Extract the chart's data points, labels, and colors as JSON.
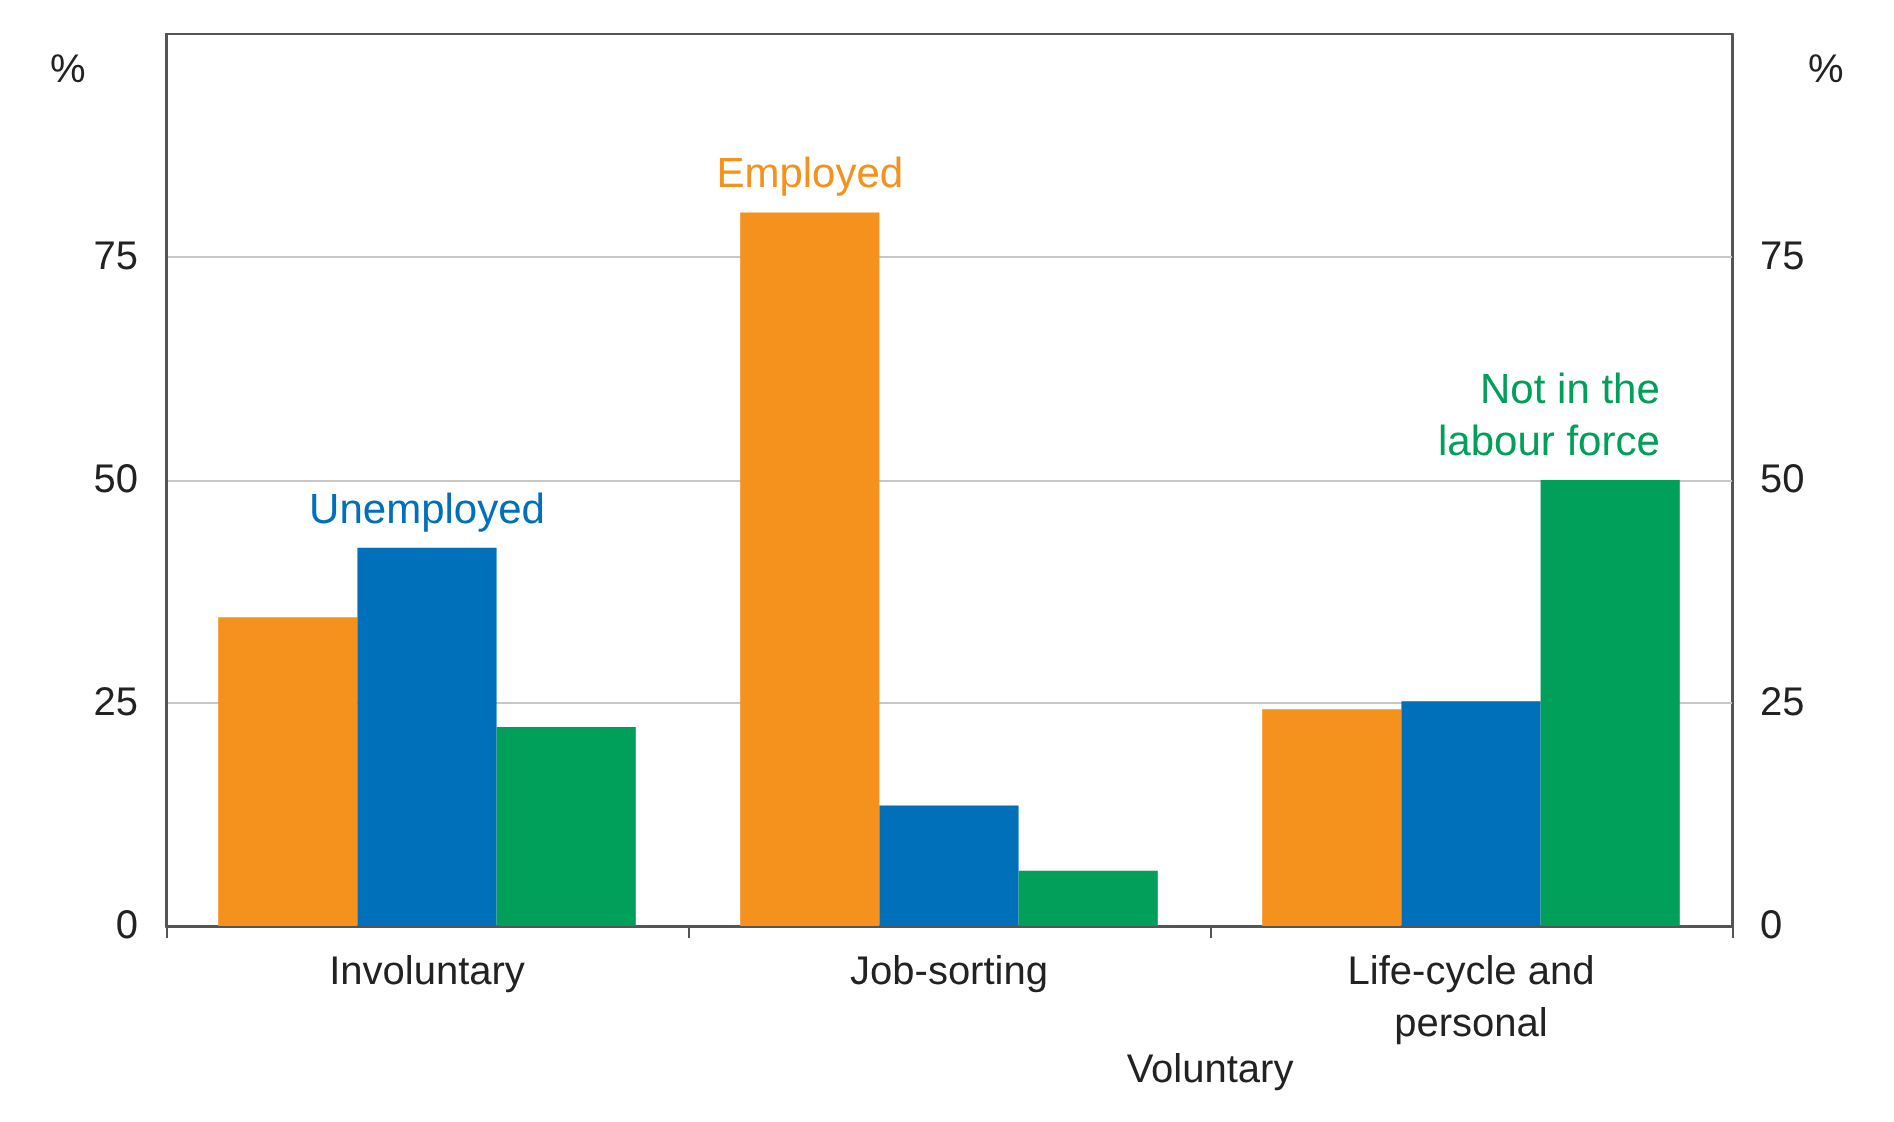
{
  "chart_data": {
    "type": "bar",
    "categories": [
      "Involuntary",
      "Job-sorting",
      "Life-cycle and\npersonal"
    ],
    "series": [
      {
        "name": "Employed",
        "color": "#f5921e",
        "values": [
          34.6,
          80,
          24.3
        ]
      },
      {
        "name": "Unemployed",
        "color": "#0070bb",
        "values": [
          42.4,
          13.5,
          25.2
        ]
      },
      {
        "name": "Not in the labour force",
        "color": "#00a05a",
        "values": [
          22.3,
          6.2,
          50
        ]
      }
    ],
    "ylabel": "%",
    "y2label": "%",
    "ylim": [
      0,
      100
    ],
    "yticks": [
      0,
      25,
      50,
      75
    ],
    "y2lim": [
      0,
      100
    ],
    "y2ticks": [
      0,
      25,
      50,
      75
    ],
    "grid": "y",
    "legend": false,
    "annotations": [
      "Voluntary"
    ]
  }
}
